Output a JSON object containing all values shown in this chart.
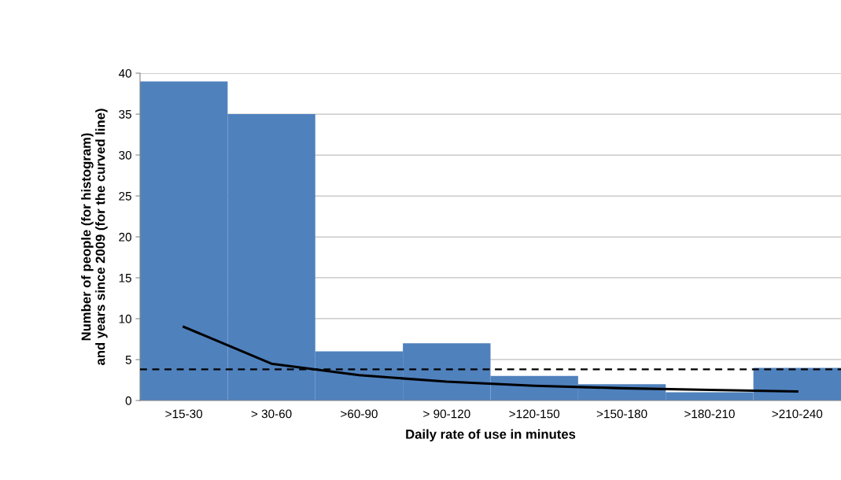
{
  "chart_data": {
    "type": "bar",
    "xlabel": "Daily rate of use in minutes",
    "ylabel": "Number of people (for histogram)\nand years since 2009 (for the curved line)",
    "categories": [
      ">15-30",
      "> 30-60",
      ">60-90",
      "> 90-120",
      ">120-150",
      ">150-180",
      ">180-210",
      ">210-240"
    ],
    "series": [
      {
        "color": "#4f81bd",
        "values": [
          39,
          35,
          6,
          7,
          3,
          2,
          1,
          4
        ]
      },
      {
        "type": "line",
        "color": "#000000",
        "values": [
          9.0,
          4.5,
          3.1,
          2.3,
          1.8,
          1.5,
          1.3,
          1.1
        ]
      }
    ],
    "ylim": [
      0,
      40
    ],
    "yticks": [
      0,
      5,
      10,
      15,
      20,
      25,
      30,
      35,
      40
    ],
    "grid": "y",
    "ref_lines": [
      {
        "axis": "y",
        "value": 3.8,
        "color": "#000000",
        "line_style": "dashed"
      }
    ]
  }
}
